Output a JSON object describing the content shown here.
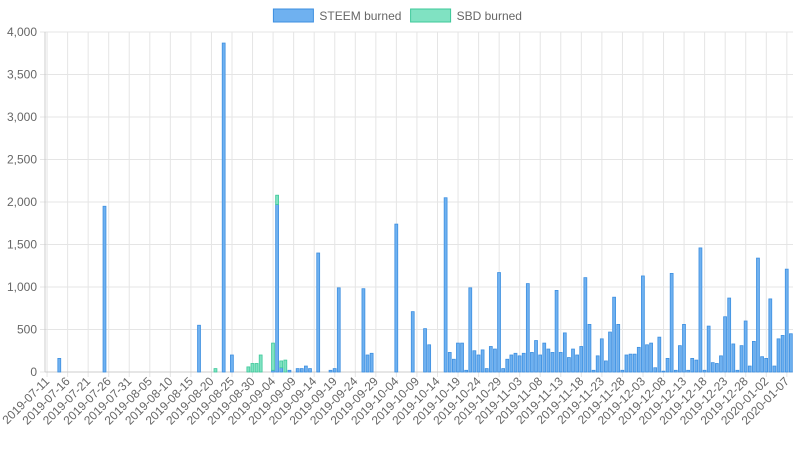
{
  "chart_data": {
    "type": "stacked_bar",
    "categories": [
      "2019-07-11",
      null,
      null,
      null,
      null,
      "2019-07-16",
      null,
      null,
      null,
      null,
      "2019-07-21",
      null,
      null,
      null,
      null,
      "2019-07-26",
      null,
      null,
      null,
      null,
      "2019-07-31",
      null,
      null,
      null,
      null,
      "2019-08-05",
      null,
      null,
      null,
      null,
      "2019-08-10",
      null,
      null,
      null,
      null,
      "2019-08-15",
      null,
      null,
      null,
      null,
      "2019-08-20",
      null,
      null,
      null,
      null,
      "2019-08-25",
      null,
      null,
      null,
      null,
      "2019-08-30",
      null,
      null,
      null,
      null,
      "2019-09-04",
      null,
      null,
      null,
      null,
      "2019-09-09",
      null,
      null,
      null,
      null,
      "2019-09-14",
      null,
      null,
      null,
      null,
      "2019-09-19",
      null,
      null,
      null,
      null,
      "2019-09-24",
      null,
      null,
      null,
      null,
      "2019-09-29",
      null,
      null,
      null,
      null,
      "2019-10-04",
      null,
      null,
      null,
      null,
      "2019-10-09",
      null,
      null,
      null,
      null,
      "2019-10-14",
      null,
      null,
      null,
      null,
      "2019-10-19",
      null,
      null,
      null,
      null,
      "2019-10-24",
      null,
      null,
      null,
      null,
      "2019-10-29",
      null,
      null,
      null,
      null,
      "2019-11-03",
      null,
      null,
      null,
      null,
      "2019-11-08",
      null,
      null,
      null,
      null,
      "2019-11-13",
      null,
      null,
      null,
      null,
      "2019-11-18",
      null,
      null,
      null,
      null,
      "2019-11-23",
      null,
      null,
      null,
      null,
      "2019-11-28",
      null,
      null,
      null,
      null,
      "2019-12-03",
      null,
      null,
      null,
      null,
      "2019-12-08",
      null,
      null,
      null,
      null,
      "2019-12-13",
      null,
      null,
      null,
      null,
      "2019-12-18",
      null,
      null,
      null,
      null,
      "2019-12-23",
      null,
      null,
      null,
      null,
      "2019-12-28",
      null,
      null,
      null,
      null,
      "2020-01-02",
      null,
      null,
      null,
      null,
      "2020-01-07",
      null
    ],
    "series": [
      {
        "name": "STEEM burned",
        "color": "#6fb1f0",
        "border": "#3d8fe0",
        "values": [
          0,
          0,
          0,
          160,
          0,
          0,
          0,
          0,
          0,
          0,
          0,
          0,
          0,
          0,
          1950,
          0,
          0,
          0,
          0,
          0,
          0,
          0,
          0,
          0,
          0,
          0,
          0,
          0,
          0,
          0,
          0,
          0,
          0,
          0,
          0,
          0,
          0,
          550,
          0,
          0,
          0,
          0,
          0,
          3870,
          0,
          200,
          0,
          0,
          0,
          0,
          0,
          0,
          0,
          0,
          0,
          20,
          1970,
          50,
          0,
          20,
          0,
          40,
          40,
          70,
          40,
          0,
          1400,
          0,
          0,
          20,
          40,
          990,
          0,
          0,
          0,
          0,
          0,
          980,
          200,
          220,
          0,
          0,
          0,
          0,
          0,
          1740,
          0,
          0,
          0,
          710,
          0,
          0,
          510,
          320,
          0,
          0,
          0,
          2050,
          230,
          150,
          340,
          340,
          20,
          990,
          250,
          200,
          260,
          40,
          300,
          270,
          1170,
          40,
          150,
          200,
          220,
          190,
          220,
          1040,
          230,
          370,
          200,
          340,
          270,
          230,
          960,
          230,
          460,
          170,
          270,
          200,
          300,
          1110,
          560,
          20,
          190,
          390,
          130,
          470,
          880,
          560,
          20,
          200,
          210,
          210,
          290,
          1130,
          320,
          340,
          50,
          410,
          10,
          160,
          1160,
          20,
          310,
          560,
          20,
          160,
          140,
          1460,
          20,
          540,
          110,
          100,
          190,
          650,
          870,
          330,
          20,
          310,
          600,
          70,
          360,
          1340,
          180,
          160,
          860,
          70,
          390,
          430,
          1210,
          450
        ]
      },
      {
        "name": "SBD burned",
        "color": "#80e2c2",
        "border": "#3ec99a",
        "values": [
          0,
          0,
          0,
          0,
          0,
          0,
          0,
          0,
          0,
          0,
          0,
          0,
          0,
          0,
          0,
          0,
          0,
          0,
          0,
          0,
          0,
          0,
          0,
          0,
          0,
          0,
          0,
          0,
          0,
          0,
          0,
          0,
          0,
          0,
          0,
          0,
          0,
          0,
          0,
          0,
          0,
          40,
          0,
          0,
          0,
          0,
          0,
          0,
          0,
          60,
          100,
          100,
          200,
          0,
          0,
          320,
          110,
          80,
          140,
          0,
          0,
          0,
          0,
          0,
          0,
          0,
          0,
          0,
          0,
          0,
          0,
          0,
          0,
          0,
          0,
          0,
          0,
          0,
          0,
          0,
          0,
          0,
          0,
          0,
          0,
          0,
          0,
          0,
          0,
          0,
          0,
          0,
          0,
          0,
          0,
          0,
          0,
          0,
          0,
          0,
          0,
          0,
          0,
          0,
          0,
          0,
          0,
          0,
          0,
          0,
          0,
          0,
          0,
          0,
          0,
          0,
          0,
          0,
          0,
          0,
          0,
          0,
          0,
          0,
          0,
          0,
          0,
          0,
          0,
          0,
          0,
          0,
          0,
          0,
          0,
          0,
          0,
          0,
          0,
          0,
          0,
          0,
          0,
          0,
          0,
          0,
          0,
          0,
          0,
          0,
          0,
          0,
          0,
          0,
          0,
          0,
          0,
          0,
          0,
          0,
          0,
          0,
          0,
          0,
          0,
          0,
          0,
          0,
          0,
          0,
          0,
          0,
          0,
          0,
          0,
          0,
          0,
          0,
          0,
          0,
          0,
          0
        ]
      }
    ],
    "ylim": [
      0,
      4000
    ],
    "yticks": [
      0,
      500,
      {
        "value": 1000,
        "label": "1,000"
      },
      {
        "value": 1500,
        "label": "1,500"
      },
      {
        "value": 2000,
        "label": "2,000"
      },
      {
        "value": 2500,
        "label": "2,500"
      },
      {
        "value": 3000,
        "label": "3,000"
      },
      {
        "value": 3500,
        "label": "3,500"
      },
      {
        "value": 4000,
        "label": "4,000"
      }
    ],
    "grid": true,
    "legend": "top"
  }
}
